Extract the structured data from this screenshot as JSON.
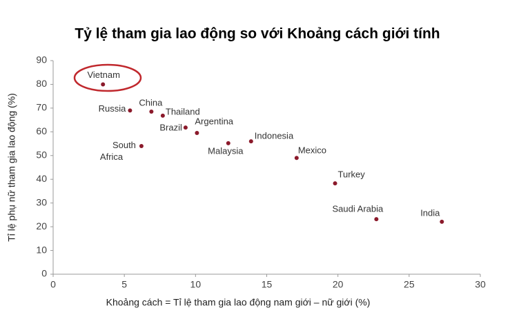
{
  "chart_data": {
    "type": "scatter",
    "title": "Tỷ lệ tham gia lao động so với Khoảng cách giới tính",
    "x_label": "Khoảng cách = Tỉ lệ tham gia lao động nam giới – nữ giới (%)",
    "y_label": "Tỉ lệ phụ nữ tham gia lao động (%)",
    "labels": [
      "Vietnam",
      "Russia",
      "China",
      "Thailand",
      "Brazil",
      "Argentina",
      "South Africa",
      "Malaysia",
      "Indonesia",
      "Mexico",
      "Turkey",
      "Saudi Arabia",
      "India"
    ],
    "x": [
      3.5,
      5.4,
      6.9,
      7.7,
      9.3,
      10.1,
      6.2,
      12.3,
      13.9,
      17.1,
      19.8,
      22.7,
      27.3
    ],
    "values": [
      80,
      69,
      68.5,
      66.8,
      61.8,
      59.5,
      54,
      55.2,
      56,
      49,
      38.3,
      23.2,
      22.1
    ],
    "color": "#8b1a2b",
    "xlim": [
      0,
      30
    ],
    "xticks": [
      0,
      5,
      10,
      15,
      20,
      25,
      30
    ],
    "ylim": [
      0,
      90
    ],
    "yticks": [
      0,
      10,
      20,
      30,
      40,
      50,
      60,
      70,
      80,
      90
    ],
    "grid": false
  }
}
